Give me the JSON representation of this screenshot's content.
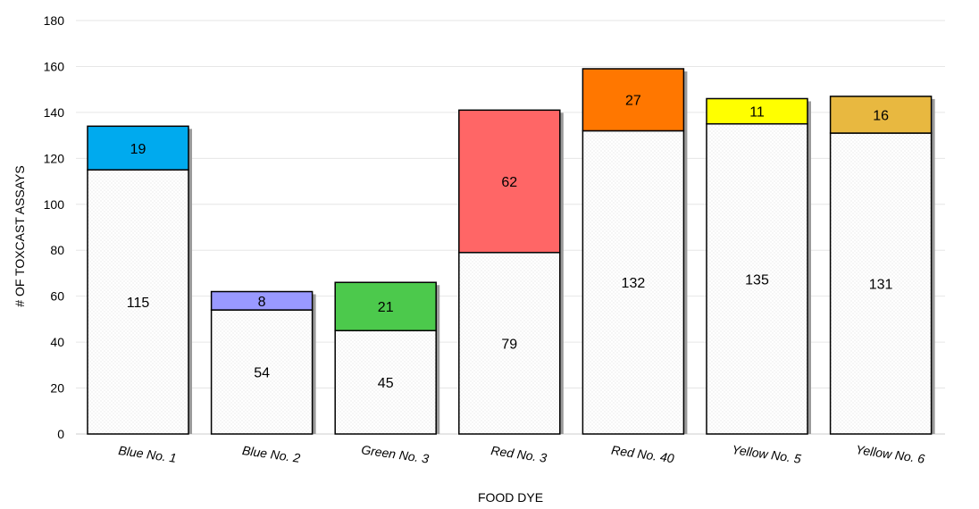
{
  "chart_data": {
    "type": "bar",
    "stacked": true,
    "title": "",
    "xlabel": "FOOD DYE",
    "ylabel": "# OF TOXCAST ASSAYS",
    "ylim": [
      0,
      180
    ],
    "yticks": [
      0,
      20,
      40,
      60,
      80,
      100,
      120,
      140,
      160,
      180
    ],
    "grid": true,
    "legend": "none",
    "categories": [
      "Blue No. 1",
      "Blue No. 2",
      "Green No. 3",
      "Red No. 3",
      "Red No. 40",
      "Yellow No. 5",
      "Yellow No. 6"
    ],
    "series": [
      {
        "values": [
          115,
          54,
          45,
          79,
          132,
          135,
          131
        ],
        "color": "#ffffff",
        "pattern": "dotted"
      },
      {
        "values": [
          19,
          8,
          21,
          62,
          27,
          11,
          16
        ],
        "colors": [
          "#00aaee",
          "#9999ff",
          "#4cc94c",
          "#ff6666",
          "#ff7700",
          "#ffff00",
          "#e8b840"
        ]
      }
    ]
  }
}
